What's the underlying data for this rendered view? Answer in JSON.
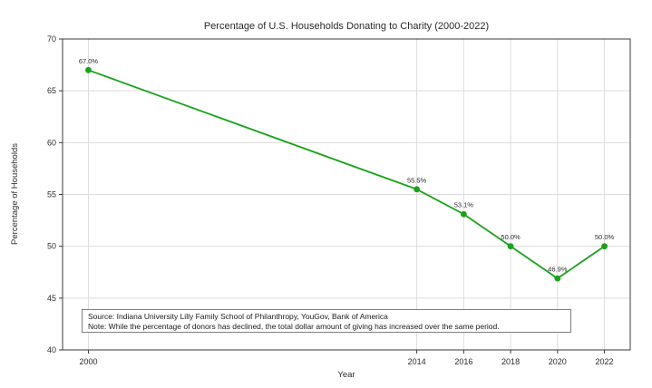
{
  "chart_data": {
    "type": "line",
    "title": "Percentage of U.S. Households Donating to Charity (2000-2022)",
    "xlabel": "Year",
    "ylabel": "Percentage of Households",
    "x": [
      2000,
      2014,
      2016,
      2018,
      2020,
      2022
    ],
    "values": [
      67.0,
      55.5,
      53.1,
      50.0,
      46.9,
      50.0
    ],
    "point_labels": [
      "67.0%",
      "55.5%",
      "53.1%",
      "50.0%",
      "46.9%",
      "50.0%"
    ],
    "xticks": [
      "2000",
      "2014",
      "2016",
      "2018",
      "2020",
      "2022"
    ],
    "xtick_values": [
      2000,
      2014,
      2016,
      2018,
      2020,
      2022
    ],
    "yticks": [
      "70",
      "65",
      "60",
      "55",
      "50",
      "45",
      "40"
    ],
    "ytick_values": [
      70,
      65,
      60,
      55,
      50,
      45,
      40
    ],
    "xlim": [
      1998.9,
      2023.1
    ],
    "ylim": [
      40,
      70
    ],
    "grid": true,
    "legend_position": "none",
    "line_color": "#1ca11c",
    "marker": "circle",
    "marker_color": "#1ca11c",
    "colors": {
      "grid": "#dcdcdc",
      "spine": "#3a3a3a",
      "tick": "#3a3a3a",
      "background": "#ffffff"
    },
    "annotation_box": {
      "line1": "Source: Indiana University Lilly Family School of Philanthropy, YouGov, Bank of America",
      "line2": "Note: While the percentage of donors has declined, the total dollar amount of giving has increased over the same period."
    }
  }
}
